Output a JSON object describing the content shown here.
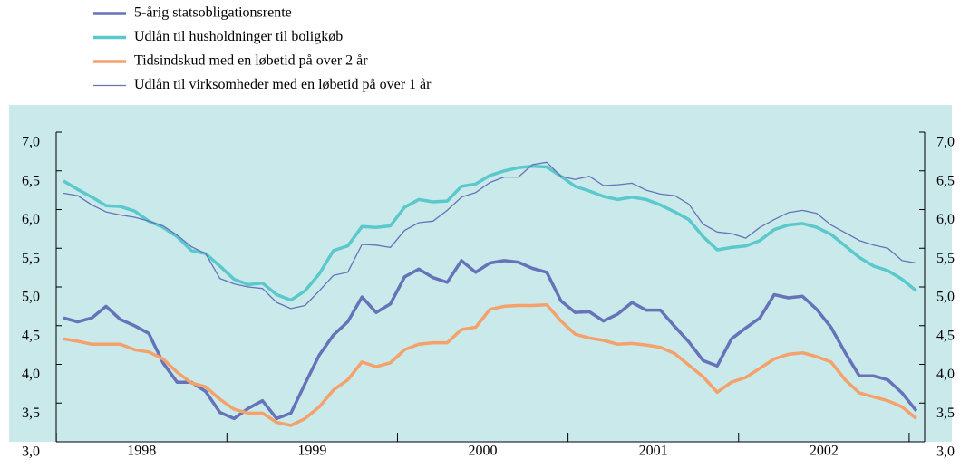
{
  "chart_data": {
    "type": "line",
    "categories": [
      null,
      null,
      null,
      null,
      null,
      null,
      "1998",
      null,
      null,
      null,
      null,
      null,
      null,
      null,
      null,
      null,
      null,
      null,
      "1999",
      null,
      null,
      null,
      null,
      null,
      null,
      null,
      null,
      null,
      null,
      null,
      "2000",
      null,
      null,
      null,
      null,
      null,
      null,
      null,
      null,
      null,
      null,
      null,
      "2001",
      null,
      null,
      null,
      null,
      null,
      null,
      null,
      null,
      null,
      null,
      null,
      "2002",
      null,
      null,
      null,
      null,
      null,
      null
    ],
    "series": [
      {
        "name": "5-årig statsobligationsrente",
        "color": "#6673b8",
        "width": 3.5,
        "values": [
          4.6,
          4.55,
          4.6,
          4.75,
          4.58,
          4.5,
          4.4,
          4.02,
          3.77,
          3.77,
          3.65,
          3.38,
          3.3,
          3.43,
          3.53,
          3.3,
          3.37,
          3.75,
          4.12,
          4.38,
          4.55,
          4.87,
          4.67,
          4.78,
          5.13,
          5.23,
          5.12,
          5.06,
          5.34,
          5.19,
          5.31,
          5.34,
          5.32,
          5.24,
          5.19,
          4.82,
          4.67,
          4.68,
          4.56,
          4.65,
          4.8,
          4.7,
          4.7,
          4.49,
          4.29,
          4.05,
          3.98,
          4.33,
          4.47,
          4.6,
          4.9,
          4.86,
          4.88,
          4.71,
          4.48,
          4.15,
          3.85,
          3.85,
          3.8,
          3.63,
          3.4
        ]
      },
      {
        "name": "Udlån til husholdninger til boligkøb",
        "color": "#5bc8cc",
        "width": 3.5,
        "values": [
          6.37,
          6.26,
          6.16,
          6.05,
          6.04,
          5.98,
          5.85,
          5.77,
          5.65,
          5.47,
          5.43,
          5.27,
          5.1,
          5.03,
          5.05,
          4.9,
          4.83,
          4.95,
          5.17,
          5.47,
          5.53,
          5.78,
          5.77,
          5.79,
          6.03,
          6.13,
          6.1,
          6.11,
          6.3,
          6.33,
          6.44,
          6.5,
          6.54,
          6.56,
          6.55,
          6.43,
          6.3,
          6.24,
          6.17,
          6.13,
          6.16,
          6.13,
          6.06,
          5.97,
          5.87,
          5.65,
          5.48,
          5.51,
          5.53,
          5.6,
          5.74,
          5.8,
          5.82,
          5.77,
          5.68,
          5.53,
          5.38,
          5.27,
          5.21,
          5.1,
          4.95
        ]
      },
      {
        "name": "Tidsindskud med en løbetid på over 2 år",
        "color": "#f4a16b",
        "width": 3.5,
        "values": [
          4.33,
          4.3,
          4.26,
          4.26,
          4.26,
          4.19,
          4.16,
          4.07,
          3.9,
          3.76,
          3.71,
          3.55,
          3.42,
          3.37,
          3.37,
          3.25,
          3.21,
          3.3,
          3.45,
          3.67,
          3.8,
          4.03,
          3.97,
          4.02,
          4.19,
          4.26,
          4.28,
          4.28,
          4.45,
          4.48,
          4.71,
          4.75,
          4.76,
          4.76,
          4.77,
          4.56,
          4.39,
          4.34,
          4.31,
          4.26,
          4.27,
          4.25,
          4.22,
          4.14,
          3.99,
          3.84,
          3.64,
          3.77,
          3.83,
          3.95,
          4.07,
          4.13,
          4.15,
          4.1,
          4.03,
          3.8,
          3.63,
          3.58,
          3.53,
          3.45,
          3.3
        ]
      },
      {
        "name": "Udlån til virksomheder med en løbetid på over 1 år",
        "color": "#6673b8",
        "width": 1.3,
        "values": [
          6.21,
          6.18,
          6.06,
          5.97,
          5.93,
          5.9,
          5.85,
          5.79,
          5.67,
          5.52,
          5.43,
          5.11,
          5.04,
          5.0,
          4.98,
          4.8,
          4.72,
          4.76,
          4.95,
          5.15,
          5.19,
          5.55,
          5.54,
          5.51,
          5.73,
          5.83,
          5.85,
          5.99,
          6.16,
          6.22,
          6.35,
          6.42,
          6.42,
          6.58,
          6.61,
          6.43,
          6.39,
          6.43,
          6.31,
          6.32,
          6.34,
          6.25,
          6.2,
          6.18,
          6.07,
          5.81,
          5.71,
          5.69,
          5.63,
          5.77,
          5.87,
          5.96,
          5.99,
          5.95,
          5.8,
          5.7,
          5.6,
          5.54,
          5.5,
          5.34,
          5.31
        ]
      }
    ],
    "ylim": [
      3,
      7
    ],
    "yticks": [
      {
        "value": 3,
        "label": "3,0"
      },
      {
        "value": 3.5,
        "label": "3,5"
      },
      {
        "value": 4,
        "label": "4,0"
      },
      {
        "value": 4.5,
        "label": "4,5"
      },
      {
        "value": 5,
        "label": "5,0"
      },
      {
        "value": 5.5,
        "label": "5,5"
      },
      {
        "value": 6,
        "label": "6,0"
      },
      {
        "value": 6.5,
        "label": "6,5"
      },
      {
        "value": 7,
        "label": "7,0"
      }
    ],
    "y2lim": [
      3,
      7
    ],
    "y2ticks": [
      {
        "value": 3,
        "label": "3,0"
      },
      {
        "value": 3.5,
        "label": "3,5"
      },
      {
        "value": 4,
        "label": "4,0"
      },
      {
        "value": 4.5,
        "label": "4,5"
      },
      {
        "value": 5,
        "label": "5,0"
      },
      {
        "value": 5.5,
        "label": "5,5"
      },
      {
        "value": 6,
        "label": "6,0"
      },
      {
        "value": 6.5,
        "label": "6,5"
      },
      {
        "value": 7,
        "label": "7,0"
      }
    ],
    "background": "#c9e9eb",
    "legend": "top-left"
  }
}
